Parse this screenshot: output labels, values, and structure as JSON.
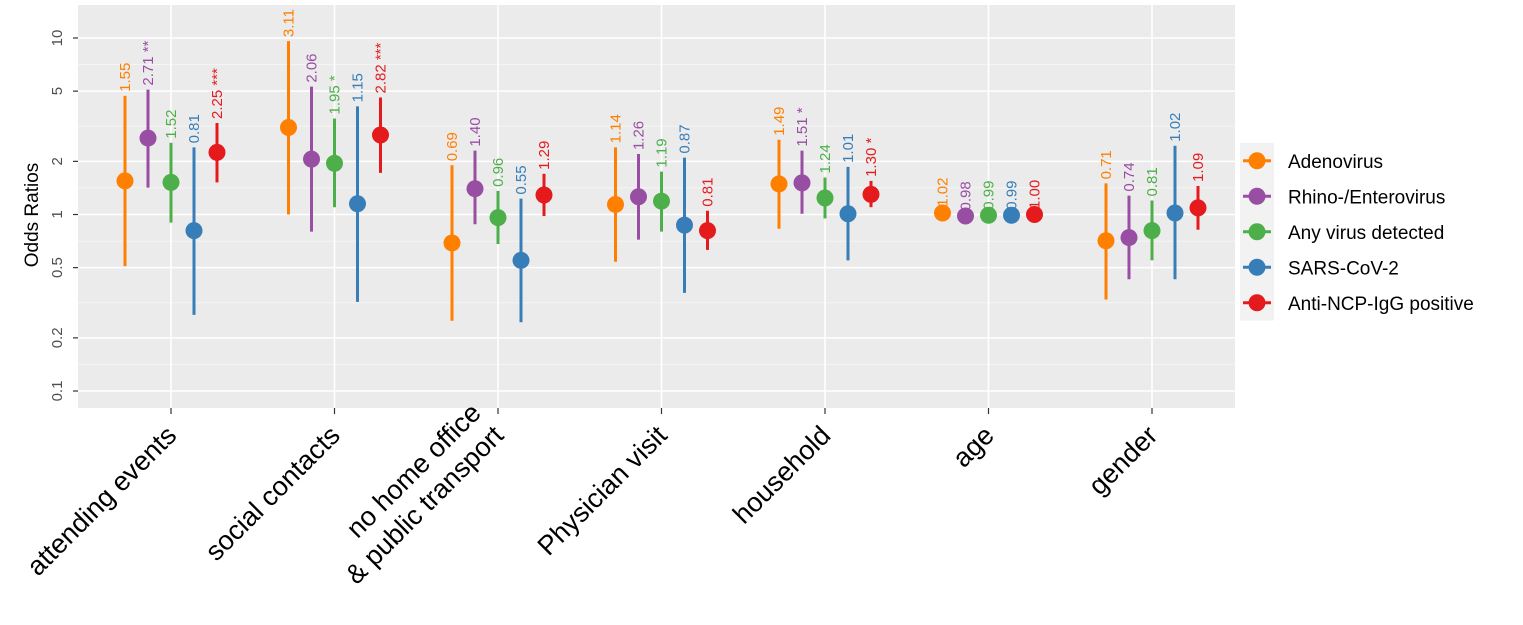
{
  "chart_data": {
    "type": "scatter",
    "title": "",
    "xlabel": "",
    "ylabel": "Odds Ratios",
    "y_scale": "log",
    "ylim": [
      0.08,
      15
    ],
    "y_ticks": [
      {
        "value": 0.1,
        "label": "0.1"
      },
      {
        "value": 0.2,
        "label": "0.2"
      },
      {
        "value": 0.5,
        "label": "0.5"
      },
      {
        "value": 1,
        "label": "1"
      },
      {
        "value": 2,
        "label": "2"
      },
      {
        "value": 5,
        "label": "5"
      },
      {
        "value": 10,
        "label": "10"
      }
    ],
    "categories": [
      {
        "label_lines": [
          "attending events"
        ]
      },
      {
        "label_lines": [
          "social contacts"
        ]
      },
      {
        "label_lines": [
          "no home office",
          "& public transport"
        ]
      },
      {
        "label_lines": [
          "Physician visit"
        ]
      },
      {
        "label_lines": [
          "household"
        ]
      },
      {
        "label_lines": [
          "age"
        ]
      },
      {
        "label_lines": [
          "gender"
        ]
      }
    ],
    "series": [
      {
        "name": "Adenovirus",
        "color": "#ff7f00",
        "points": [
          {
            "or": 1.55,
            "lo": 0.51,
            "hi": 4.7,
            "label": "1.55"
          },
          {
            "or": 3.11,
            "lo": 1.0,
            "hi": 9.6,
            "label": "3.11"
          },
          {
            "or": 0.69,
            "lo": 0.25,
            "hi": 1.9,
            "label": "0.69"
          },
          {
            "or": 1.14,
            "lo": 0.54,
            "hi": 2.4,
            "label": "1.14"
          },
          {
            "or": 1.49,
            "lo": 0.83,
            "hi": 2.65,
            "label": "1.49"
          },
          {
            "or": 1.02,
            "lo": 0.99,
            "hi": 1.05,
            "label": "1.02"
          },
          {
            "or": 0.71,
            "lo": 0.33,
            "hi": 1.5,
            "label": "0.71"
          }
        ]
      },
      {
        "name": "Rhino-/Enterovirus",
        "color": "#984ea3",
        "points": [
          {
            "or": 2.71,
            "lo": 1.42,
            "hi": 5.1,
            "label": "2.71 **"
          },
          {
            "or": 2.06,
            "lo": 0.8,
            "hi": 5.3,
            "label": "2.06"
          },
          {
            "or": 1.4,
            "lo": 0.88,
            "hi": 2.3,
            "label": "1.40"
          },
          {
            "or": 1.26,
            "lo": 0.72,
            "hi": 2.2,
            "label": "1.26"
          },
          {
            "or": 1.51,
            "lo": 1.01,
            "hi": 2.3,
            "label": "1.51 *"
          },
          {
            "or": 0.98,
            "lo": 0.96,
            "hi": 1.0,
            "label": "0.98"
          },
          {
            "or": 0.74,
            "lo": 0.43,
            "hi": 1.28,
            "label": "0.74"
          }
        ]
      },
      {
        "name": "Any virus detected",
        "color": "#4daf4a",
        "points": [
          {
            "or": 1.52,
            "lo": 0.9,
            "hi": 2.55,
            "label": "1.52"
          },
          {
            "or": 1.95,
            "lo": 1.1,
            "hi": 3.5,
            "label": "1.95 *"
          },
          {
            "or": 0.96,
            "lo": 0.68,
            "hi": 1.36,
            "label": "0.96"
          },
          {
            "or": 1.19,
            "lo": 0.8,
            "hi": 1.75,
            "label": "1.19"
          },
          {
            "or": 1.24,
            "lo": 0.95,
            "hi": 1.62,
            "label": "1.24"
          },
          {
            "or": 0.99,
            "lo": 0.97,
            "hi": 1.01,
            "label": "0.99"
          },
          {
            "or": 0.81,
            "lo": 0.55,
            "hi": 1.2,
            "label": "0.81"
          }
        ]
      },
      {
        "name": "SARS-CoV-2",
        "color": "#377eb8",
        "points": [
          {
            "or": 0.81,
            "lo": 0.27,
            "hi": 2.4,
            "label": "0.81"
          },
          {
            "or": 1.15,
            "lo": 0.32,
            "hi": 4.1,
            "label": "1.15"
          },
          {
            "or": 0.55,
            "lo": 0.245,
            "hi": 1.23,
            "label": "0.55"
          },
          {
            "or": 0.87,
            "lo": 0.36,
            "hi": 2.1,
            "label": "0.87"
          },
          {
            "or": 1.01,
            "lo": 0.55,
            "hi": 1.86,
            "label": "1.01"
          },
          {
            "or": 0.99,
            "lo": 0.97,
            "hi": 1.01,
            "label": "0.99"
          },
          {
            "or": 1.02,
            "lo": 0.43,
            "hi": 2.45,
            "label": "1.02"
          }
        ]
      },
      {
        "name": "Anti-NCP-IgG positive",
        "color": "#e41a1c",
        "points": [
          {
            "or": 2.25,
            "lo": 1.52,
            "hi": 3.3,
            "label": "2.25 ***"
          },
          {
            "or": 2.82,
            "lo": 1.72,
            "hi": 4.6,
            "label": "2.82 ***"
          },
          {
            "or": 1.29,
            "lo": 0.98,
            "hi": 1.7,
            "label": "1.29"
          },
          {
            "or": 0.81,
            "lo": 0.63,
            "hi": 1.05,
            "label": "0.81"
          },
          {
            "or": 1.3,
            "lo": 1.1,
            "hi": 1.55,
            "label": "1.30 *"
          },
          {
            "or": 1.0,
            "lo": 0.98,
            "hi": 1.02,
            "label": "1.00"
          },
          {
            "or": 1.09,
            "lo": 0.82,
            "hi": 1.45,
            "label": "1.09"
          }
        ]
      }
    ],
    "legend_position": "right"
  }
}
